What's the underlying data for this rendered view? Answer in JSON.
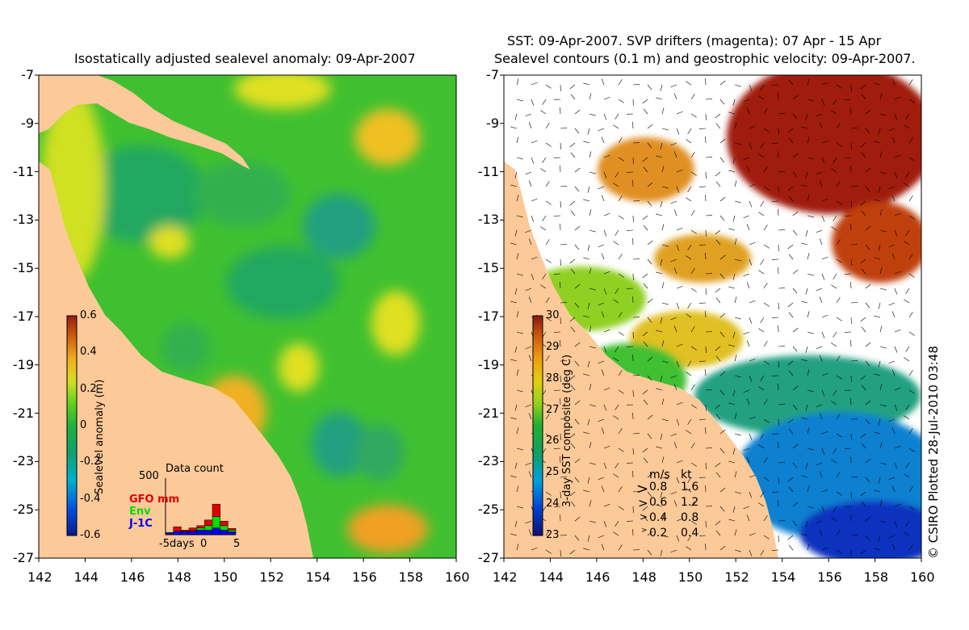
{
  "left_panel": {
    "title": "Isostatically adjusted sealevel anomaly: 09-Apr-2007",
    "colorbar": {
      "label": "Sealevel anomaly (m)",
      "ticks": [
        "0.6",
        "0.4",
        "0.2",
        "0",
        "-0.2",
        "-0.4",
        "-0.6"
      ]
    },
    "data_count": {
      "title": "Data count",
      "ymax": "500",
      "legend": [
        {
          "label": "GFO mm",
          "color": "#e00000"
        },
        {
          "label": "Env",
          "color": "#00dd00"
        },
        {
          "label": "J-1C",
          "color": "#0000ee"
        }
      ],
      "xticks": [
        "-5days",
        "0",
        "5"
      ],
      "bars": [
        {
          "day": -5,
          "j1c": 15,
          "env": 5,
          "gfo": 0
        },
        {
          "day": -4,
          "j1c": 30,
          "env": 0,
          "gfo": 40
        },
        {
          "day": -3,
          "j1c": 25,
          "env": 5,
          "gfo": 10
        },
        {
          "day": -2,
          "j1c": 30,
          "env": 5,
          "gfo": 25
        },
        {
          "day": -1,
          "j1c": 40,
          "env": 20,
          "gfo": 20
        },
        {
          "day": 0,
          "j1c": 40,
          "env": 40,
          "gfo": 50
        },
        {
          "day": 1,
          "j1c": 60,
          "env": 100,
          "gfo": 110
        },
        {
          "day": 2,
          "j1c": 40,
          "env": 40,
          "gfo": 40
        },
        {
          "day": 3,
          "j1c": 25,
          "env": 15,
          "gfo": 15
        }
      ]
    }
  },
  "right_panel": {
    "title_line1": "SST: 09-Apr-2007. SVP drifters (magenta): 07 Apr - 15 Apr",
    "title_line2": "Sealevel contours (0.1 m) and geostrophic velocity: 09-Apr-2007.",
    "colorbar": {
      "label": "3-day SST composite (deg C)",
      "ticks": [
        "30",
        "29",
        "28",
        "27",
        "26",
        "25",
        "24",
        "23"
      ]
    },
    "velocity_key": {
      "header_ms": "m/s",
      "header_kt": "kt",
      "rows": [
        {
          "ms": "0.8",
          "kt": "1.6"
        },
        {
          "ms": "0.6",
          "kt": "1.2"
        },
        {
          "ms": "0.4",
          "kt": "0.8"
        },
        {
          "ms": "0.2",
          "kt": "0.4"
        }
      ]
    },
    "credit": "© CSIRO Plotted 28-Jul-2010 03:48"
  },
  "axes": {
    "x_ticks": [
      "142",
      "144",
      "146",
      "148",
      "150",
      "152",
      "154",
      "156",
      "158",
      "160"
    ],
    "y_ticks": [
      "-7",
      "-9",
      "-11",
      "-13",
      "-15",
      "-17",
      "-19",
      "-21",
      "-23",
      "-25",
      "-27"
    ],
    "lon_range": [
      142,
      160
    ],
    "lat_range": [
      -27,
      -7
    ]
  },
  "colors": {
    "land": "#fcc998",
    "sla_ramp": [
      "#0a1a8a",
      "#0050e0",
      "#00b0d0",
      "#10a070",
      "#20b040",
      "#60d020",
      "#d0e020",
      "#f0b020",
      "#d06010",
      "#9a1a10"
    ],
    "sst_ramp": [
      "#101070",
      "#0040d0",
      "#00a0e0",
      "#10a060",
      "#20b030",
      "#90d020",
      "#e0d010",
      "#f0a010",
      "#d06010",
      "#8a1a0a"
    ]
  }
}
